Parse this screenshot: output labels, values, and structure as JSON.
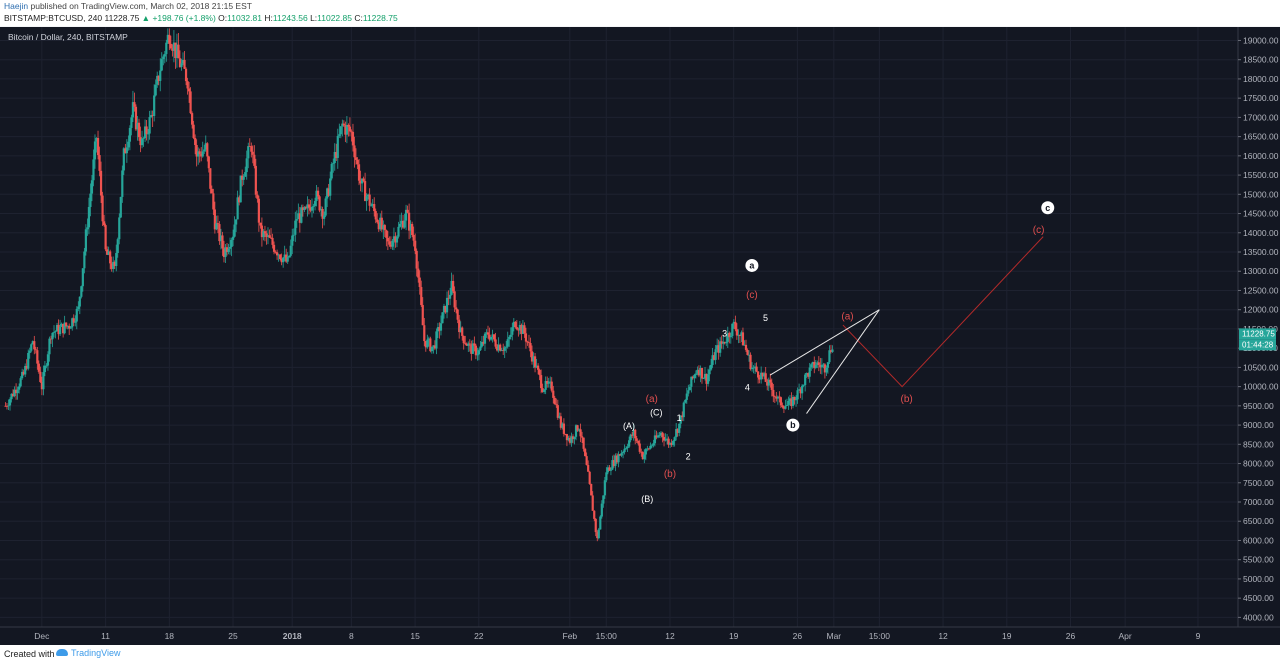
{
  "header": {
    "author": "Haejin",
    "published": "published on TradingView.com, March 02, 2018 21:15 EST",
    "symbol": "BITSTAMP:BTCUSD, 240",
    "last": "11228.75",
    "change_icon": "up-triangle-icon",
    "change": "+198.76 (+1.8%)",
    "open_label": "O:",
    "open": "11032.81",
    "high_label": "H:",
    "high": "11243.56",
    "low_label": "L:",
    "low": "11022.85",
    "close_label": "C:",
    "close": "11228.75"
  },
  "footer": {
    "created_with": "Created with",
    "brand": "TradingView",
    "brand_icon": "tradingview-logo-icon"
  },
  "colors": {
    "background": "#131722",
    "grid": "#1e2230",
    "up": "#26a69a",
    "down": "#ef5350",
    "wave_white": "#ffffff",
    "wave_red": "#e04f4f",
    "last_price_badge": "#26a69a"
  },
  "chart_data": {
    "type": "candlestick",
    "title": "Bitcoin / Dollar, 240, BITSTAMP",
    "price_badge": "11228.75",
    "countdown_badge": "01:44:28",
    "ylim": [
      3750,
      19350
    ],
    "y_ticks": [
      "4000.00",
      "4500.00",
      "5000.00",
      "5500.00",
      "6000.00",
      "6500.00",
      "7000.00",
      "7500.00",
      "8000.00",
      "8500.00",
      "9000.00",
      "9500.00",
      "10000.00",
      "10500.00",
      "11000.00",
      "11500.00",
      "12000.00",
      "12500.00",
      "13000.00",
      "13500.00",
      "14000.00",
      "14500.00",
      "15000.00",
      "15500.00",
      "16000.00",
      "16500.00",
      "17000.00",
      "17500.00",
      "18000.00",
      "18500.00",
      "19000.00"
    ],
    "x_ticks": [
      {
        "label": "Dec",
        "day": 4
      },
      {
        "label": "11",
        "day": 11
      },
      {
        "label": "18",
        "day": 18
      },
      {
        "label": "25",
        "day": 25
      },
      {
        "label": "2018",
        "day": 31.5
      },
      {
        "label": "8",
        "day": 38
      },
      {
        "label": "15",
        "day": 45
      },
      {
        "label": "22",
        "day": 52
      },
      {
        "label": "Feb",
        "day": 62
      },
      {
        "label": "15:00",
        "day": 66
      },
      {
        "label": "12",
        "day": 73
      },
      {
        "label": "19",
        "day": 80
      },
      {
        "label": "26",
        "day": 87
      },
      {
        "label": "Mar",
        "day": 91
      },
      {
        "label": "15:00",
        "day": 96
      },
      {
        "label": "12",
        "day": 103
      },
      {
        "label": "19",
        "day": 110
      },
      {
        "label": "26",
        "day": 117
      },
      {
        "label": "Apr",
        "day": 123
      },
      {
        "label": "9",
        "day": 131
      }
    ],
    "price_path": [
      [
        0,
        9500
      ],
      [
        2,
        10300
      ],
      [
        3,
        11200
      ],
      [
        4,
        10000
      ],
      [
        5,
        11400
      ],
      [
        7,
        11600
      ],
      [
        8,
        12000
      ],
      [
        9,
        14300
      ],
      [
        10,
        16500
      ],
      [
        11,
        13500
      ],
      [
        12,
        13000
      ],
      [
        13,
        16000
      ],
      [
        14,
        17200
      ],
      [
        15,
        16300
      ],
      [
        16,
        17000
      ],
      [
        17,
        18300
      ],
      [
        18,
        19200
      ],
      [
        19,
        18500
      ],
      [
        20,
        18000
      ],
      [
        21,
        16000
      ],
      [
        22,
        16200
      ],
      [
        23,
        14300
      ],
      [
        24,
        13500
      ],
      [
        25,
        14000
      ],
      [
        26,
        15500
      ],
      [
        27,
        16300
      ],
      [
        28,
        14000
      ],
      [
        29,
        13800
      ],
      [
        30,
        13500
      ],
      [
        31,
        13200
      ],
      [
        32,
        14400
      ],
      [
        33,
        14500
      ],
      [
        34,
        15000
      ],
      [
        35,
        14500
      ],
      [
        36,
        15800
      ],
      [
        37,
        16800
      ],
      [
        38,
        16600
      ],
      [
        39,
        15300
      ],
      [
        40,
        14800
      ],
      [
        41,
        14300
      ],
      [
        42,
        13700
      ],
      [
        43,
        14000
      ],
      [
        44,
        14500
      ],
      [
        45,
        13700
      ],
      [
        46,
        11200
      ],
      [
        47,
        11000
      ],
      [
        48,
        11800
      ],
      [
        49,
        12600
      ],
      [
        50,
        11400
      ],
      [
        51,
        11000
      ],
      [
        52,
        10900
      ],
      [
        53,
        11400
      ],
      [
        54,
        11100
      ],
      [
        55,
        11000
      ],
      [
        56,
        11700
      ],
      [
        57,
        11400
      ],
      [
        58,
        10700
      ],
      [
        59,
        10000
      ],
      [
        60,
        10000
      ],
      [
        61,
        9000
      ],
      [
        62,
        8600
      ],
      [
        63,
        9000
      ],
      [
        64,
        7700
      ],
      [
        65,
        6000
      ],
      [
        66,
        7800
      ],
      [
        67,
        8100
      ],
      [
        68,
        8400
      ],
      [
        69,
        8800
      ],
      [
        70,
        8200
      ],
      [
        71,
        8500
      ],
      [
        72,
        8800
      ],
      [
        73,
        8500
      ],
      [
        74,
        9000
      ],
      [
        75,
        9900
      ],
      [
        76,
        10500
      ],
      [
        77,
        10200
      ],
      [
        78,
        10900
      ],
      [
        79,
        11200
      ],
      [
        80,
        11600
      ],
      [
        81,
        11200
      ],
      [
        82,
        10500
      ],
      [
        83,
        10300
      ],
      [
        84,
        10000
      ],
      [
        85,
        9600
      ],
      [
        86,
        9500
      ],
      [
        87,
        9800
      ],
      [
        88,
        10300
      ],
      [
        89,
        10600
      ],
      [
        90,
        10500
      ],
      [
        91,
        11229
      ]
    ],
    "waves": {
      "white_digits": [
        {
          "label": "1",
          "day": 74,
          "price": 9100
        },
        {
          "label": "2",
          "day": 75,
          "price": 8100
        },
        {
          "label": "3",
          "day": 79,
          "price": 11300
        },
        {
          "label": "4",
          "day": 81.5,
          "price": 9900
        },
        {
          "label": "5",
          "day": 83.5,
          "price": 11700
        }
      ],
      "white_parens": [
        {
          "label": "(A)",
          "day": 68.5,
          "price": 8900
        },
        {
          "label": "(B)",
          "day": 70.5,
          "price": 7000
        },
        {
          "label": "(C)",
          "day": 71.5,
          "price": 9250
        }
      ],
      "red": [
        {
          "label": "(a)",
          "day": 71,
          "price": 9600
        },
        {
          "label": "(b)",
          "day": 73,
          "price": 7650
        },
        {
          "label": "(c)",
          "day": 82,
          "price": 12300
        },
        {
          "label": "(a)",
          "day": 92.5,
          "price": 11750
        },
        {
          "label": "(b)",
          "day": 99,
          "price": 9600
        },
        {
          "label": "(c)",
          "day": 113.5,
          "price": 14000
        }
      ],
      "circled": [
        {
          "label": "a",
          "day": 82,
          "price": 13150
        },
        {
          "label": "b",
          "day": 86.5,
          "price": 9000
        },
        {
          "label": "c",
          "day": 114.5,
          "price": 14650
        }
      ]
    },
    "projection": [
      [
        92,
        11600
      ],
      [
        98.5,
        10000
      ],
      [
        114,
        13900
      ]
    ],
    "wedge_upper": [
      [
        84,
        10300
      ],
      [
        96,
        12000
      ]
    ],
    "wedge_lower": [
      [
        88,
        9300
      ],
      [
        96,
        12000
      ]
    ]
  }
}
